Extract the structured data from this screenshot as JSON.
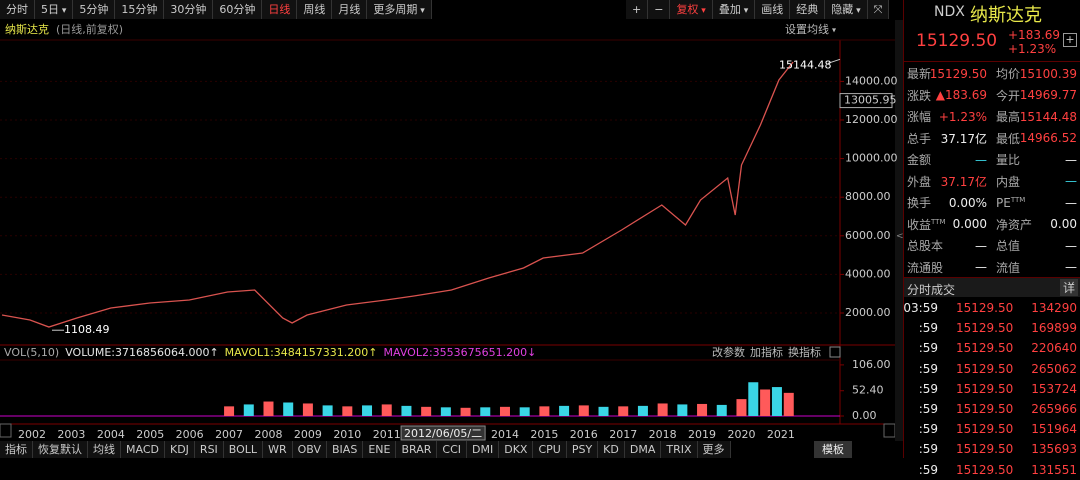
{
  "toolbar": {
    "left": [
      {
        "label": "分时"
      },
      {
        "label": "5日",
        "menu": true
      },
      {
        "label": "5分钟"
      },
      {
        "label": "15分钟"
      },
      {
        "label": "30分钟"
      },
      {
        "label": "60分钟"
      },
      {
        "label": "日线",
        "active": true
      },
      {
        "label": "周线"
      },
      {
        "label": "月线"
      },
      {
        "label": "更多周期",
        "menu": true
      }
    ],
    "right": [
      {
        "label": "+"
      },
      {
        "label": "−"
      },
      {
        "label": "复权",
        "menu": true,
        "active": true
      },
      {
        "label": "叠加",
        "menu": true
      },
      {
        "label": "画线"
      },
      {
        "label": "经典"
      },
      {
        "label": "隐藏",
        "menu": true
      },
      {
        "label": "⤧"
      }
    ]
  },
  "chart": {
    "title": "纳斯达克",
    "subtitle": "(日线,前复权)",
    "ma_button": "设置均线",
    "ylim": [
      0,
      16000
    ],
    "yticks": [
      {
        "value": 2000,
        "label": "2000.00"
      },
      {
        "value": 4000,
        "label": "4000.00"
      },
      {
        "value": 6000,
        "label": "6000.00"
      },
      {
        "value": 8000,
        "label": "8000.00"
      },
      {
        "value": 10000,
        "label": "10000.00"
      },
      {
        "value": 12000,
        "label": "12000.00"
      },
      {
        "value": 14000,
        "label": "14000.00"
      }
    ],
    "grid": true,
    "cursor_price": {
      "value": 13005.95,
      "label": "13005.95"
    },
    "max_label": {
      "value": 15144.48,
      "label": "15144.48"
    },
    "min_label": {
      "value": 1108.49,
      "label": "1108.49"
    },
    "price": {
      "color": "#d9534f",
      "x": [
        2001.24,
        2001.95,
        2002.43,
        2003.14,
        2004.0,
        2004.99,
        2005.99,
        2006.96,
        2007.65,
        2008.36,
        2008.6,
        2008.98,
        2009.98,
        2010.98,
        2011.69,
        2012.64,
        2013.59,
        2014.47,
        2014.97,
        2015.97,
        2016.96,
        2017.98,
        2018.58,
        2018.96,
        2019.65,
        2019.84,
        2020.0,
        2020.48,
        2020.95,
        2021.31
      ],
      "values": [
        1896,
        1637,
        1275,
        1741,
        2259,
        2518,
        2674,
        3088,
        3192,
        1741,
        1482,
        1896,
        2415,
        2674,
        2881,
        3192,
        3813,
        4332,
        4850,
        5109,
        6301,
        7596,
        6560,
        7855,
        8995,
        7078,
        9668,
        11741,
        14073,
        15005
      ]
    },
    "xlim": [
      2001.24,
      2022.5
    ],
    "years": [
      2002,
      2003,
      2004,
      2005,
      2006,
      2007,
      2008,
      2009,
      2010,
      2011,
      2012,
      2013,
      2014,
      2015,
      2016,
      2017,
      2018,
      2019,
      2020,
      2021
    ],
    "cursor_date": "2012/06/05/二"
  },
  "volume": {
    "header": [
      {
        "text": "VOL(5,10)",
        "color": "#aaaaaa"
      },
      {
        "text": "VOLUME:3716856064.000↑",
        "color": "#e6e6e6"
      },
      {
        "text": "MAVOL1:3484157331.200↑",
        "color": "#e8e84a"
      },
      {
        "text": "MAVOL2:3553675651.200↓",
        "color": "#e040e0"
      }
    ],
    "buttons": [
      "改参数",
      "加指标",
      "换指标"
    ],
    "ylim": [
      0,
      112
    ],
    "yticks": [
      {
        "value": 0,
        "label": "0.00"
      },
      {
        "value": 52.4,
        "label": "52.40"
      },
      {
        "value": 106,
        "label": "106.00"
      }
    ],
    "colors": [
      "#ff5a5a",
      "#3ad6e6"
    ],
    "x": [
      2007.0,
      2007.5,
      2008.0,
      2008.5,
      2009.0,
      2009.5,
      2010.0,
      2010.5,
      2011.0,
      2011.5,
      2012.0,
      2012.5,
      2013.0,
      2013.5,
      2014.0,
      2014.5,
      2015.0,
      2015.5,
      2016.0,
      2016.5,
      2017.0,
      2017.5,
      2018.0,
      2018.5,
      2019.0,
      2019.5,
      2020.0,
      2020.3,
      2020.6,
      2020.9,
      2021.2
    ],
    "values": [
      20,
      24,
      30,
      28,
      26,
      22,
      20,
      22,
      24,
      21,
      19,
      18,
      17,
      18,
      19,
      18,
      20,
      21,
      22,
      19,
      20,
      21,
      26,
      24,
      25,
      23,
      35,
      70,
      55,
      60,
      48
    ]
  },
  "tabs": [
    "指标",
    "恢复默认",
    "均线",
    "MACD",
    "KDJ",
    "RSI",
    "BOLL",
    "WR",
    "OBV",
    "BIAS",
    "ENE",
    "BRAR",
    "CCI",
    "DMI",
    "DKX",
    "CPU",
    "PSY",
    "KD",
    "DMA",
    "TRIX",
    "更多"
  ],
  "tab_template": "模板",
  "quote": {
    "code": "NDX",
    "name": "纳斯达克",
    "price": "15129.50",
    "change": "+183.69",
    "pct": "+1.23%",
    "plus": "+",
    "rows": [
      {
        "l1": "最新",
        "v1": "15129.50",
        "c1": "red",
        "l2": "均价",
        "v2": "15100.39",
        "c2": "red"
      },
      {
        "l1": "涨跌",
        "v1": "▲183.69",
        "c1": "red",
        "l2": "今开",
        "v2": "14969.77",
        "c2": "red"
      },
      {
        "l1": "涨幅",
        "v1": "+1.23%",
        "c1": "red",
        "l2": "最高",
        "v2": "15144.48",
        "c2": "red"
      },
      {
        "l1": "总手",
        "v1": "37.17亿",
        "c1": "white",
        "l2": "最低",
        "v2": "14966.52",
        "c2": "red"
      },
      {
        "l1": "金额",
        "v1": "—",
        "c1": "cyan",
        "l2": "量比",
        "v2": "—",
        "c2": "white"
      },
      {
        "l1": "外盘",
        "v1": "37.17亿",
        "c1": "red",
        "l2": "内盘",
        "v2": "—",
        "c2": "cyan"
      },
      {
        "l1": "换手",
        "v1": "0.00%",
        "c1": "white",
        "l2": "PE",
        "s2": "TTM",
        "v2": "—",
        "c2": "white"
      },
      {
        "l1": "收益",
        "s1": "TTM",
        "v1": "0.000",
        "c1": "white",
        "l2": "净资产",
        "v2": "0.00",
        "c2": "white"
      },
      {
        "l1": "总股本",
        "v1": "—",
        "c1": "white",
        "l2": "总值",
        "v2": "—",
        "c2": "white"
      },
      {
        "l1": "流通股",
        "v1": "—",
        "c1": "white",
        "l2": "流值",
        "v2": "—",
        "c2": "white"
      }
    ]
  },
  "trades": {
    "title": "分时成交",
    "detail": "详",
    "rows": [
      [
        "03:59",
        "15129.50",
        "134290"
      ],
      [
        ":59",
        "15129.50",
        "169899"
      ],
      [
        ":59",
        "15129.50",
        "220640"
      ],
      [
        ":59",
        "15129.50",
        "265062"
      ],
      [
        ":59",
        "15129.50",
        "153724"
      ],
      [
        ":59",
        "15129.50",
        "265966"
      ],
      [
        ":59",
        "15129.50",
        "151964"
      ],
      [
        ":59",
        "15129.50",
        "135693"
      ],
      [
        ":59",
        "15129.50",
        "131551"
      ]
    ]
  }
}
